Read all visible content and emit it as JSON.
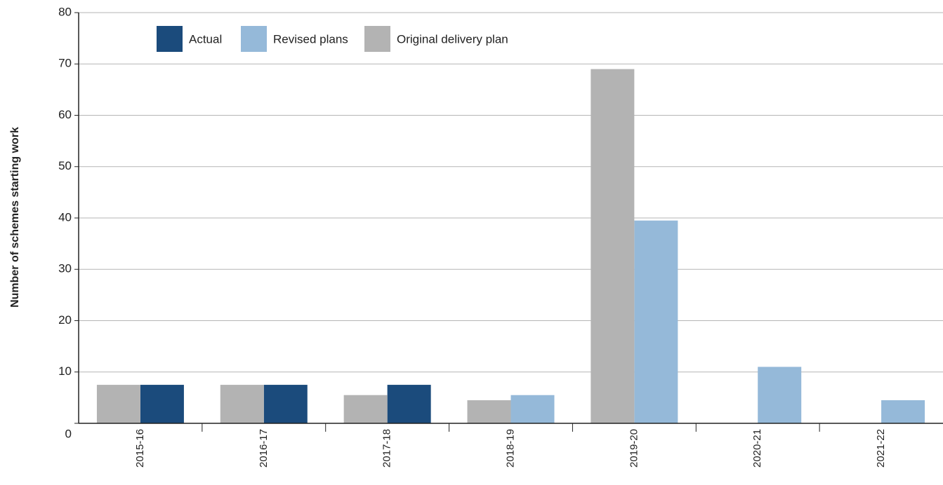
{
  "chart_data": {
    "type": "bar",
    "y_label": "Number of schemes starting work",
    "categories": [
      "2015-16",
      "2016-17",
      "2017-18",
      "2018-19",
      "2019-20",
      "2020-21",
      "2021-22"
    ],
    "series": [
      {
        "name": "Actual",
        "color": "#1b4b7c",
        "values": [
          7.5,
          7.5,
          7.5,
          null,
          null,
          null,
          null
        ]
      },
      {
        "name": "Revised plans",
        "color": "#95b9d9",
        "values": [
          null,
          null,
          null,
          5.5,
          39.5,
          11,
          4.5
        ]
      },
      {
        "name": "Original delivery plan",
        "color": "#b3b3b3",
        "values": [
          7.5,
          7.5,
          5.5,
          4.5,
          69,
          null,
          null
        ]
      }
    ],
    "ylim": [
      0,
      80
    ],
    "yticks": [
      0,
      10,
      20,
      30,
      40,
      50,
      60,
      70,
      80
    ],
    "grid": true
  }
}
